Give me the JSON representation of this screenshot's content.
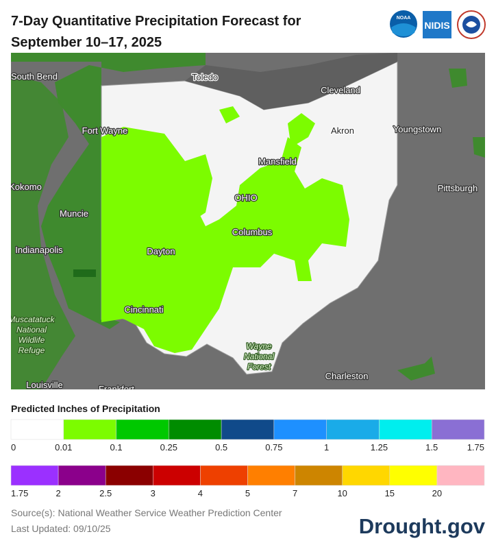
{
  "header": {
    "title_lines": [
      "7-Day Quantitative Precipitation Forecast for",
      "September 10–17, 2025"
    ],
    "logos": [
      "NOAA",
      "NIDIS"
    ]
  },
  "map": {
    "places": [
      {
        "label": "South Bend",
        "style": "light"
      },
      {
        "label": "Toledo",
        "style": "dark"
      },
      {
        "label": "Cleveland",
        "style": "light"
      },
      {
        "label": "Fort Wayne",
        "style": "light"
      },
      {
        "label": "Akron",
        "style": "dark"
      },
      {
        "label": "Youngstown",
        "style": "light"
      },
      {
        "label": "Mansfield",
        "style": "light"
      },
      {
        "label": "Kokomo",
        "style": "light"
      },
      {
        "label": "OHIO",
        "style": "light"
      },
      {
        "label": "Pittsburgh",
        "style": "light"
      },
      {
        "label": "Muncie",
        "style": "light"
      },
      {
        "label": "Columbus",
        "style": "light"
      },
      {
        "label": "Indianapolis",
        "style": "light"
      },
      {
        "label": "Dayton",
        "style": "light"
      },
      {
        "label": "Cincinnati",
        "style": "light"
      },
      {
        "label": "Charleston",
        "style": "light"
      },
      {
        "label": "Louisville",
        "style": "light"
      },
      {
        "label": "Frankfort",
        "style": "light"
      }
    ],
    "parks": [
      {
        "lines": [
          "Muscatatuck",
          "National",
          "Wildlife",
          "Refuge"
        ]
      },
      {
        "lines": [
          "Wayne",
          "National",
          "Forest"
        ]
      }
    ]
  },
  "legend": {
    "title": "Predicted Inches of Precipitation",
    "rows": [
      {
        "colors": [
          "#ffffff",
          "#7cfc00",
          "#00c800",
          "#008c00",
          "#104a8a",
          "#1e90ff",
          "#1aabe8",
          "#00eeee",
          "#8a6fd4"
        ],
        "labels": [
          "0",
          "0.01",
          "0.1",
          "0.25",
          "0.5",
          "0.75",
          "1",
          "1.25",
          "1.5",
          "1.75"
        ]
      },
      {
        "colors": [
          "#9b30ff",
          "#8b008b",
          "#8b0000",
          "#cc0000",
          "#ee4000",
          "#ff7f00",
          "#cd8500",
          "#ffd700",
          "#ffff00",
          "#ffb6c1"
        ],
        "labels": [
          "1.75",
          "2",
          "2.5",
          "3",
          "4",
          "5",
          "7",
          "10",
          "15",
          "20"
        ]
      }
    ]
  },
  "footer": {
    "source": "Source(s): National Weather Service Weather Prediction Center",
    "updated": "Last Updated: 09/10/25",
    "brand": "Drought.gov"
  }
}
